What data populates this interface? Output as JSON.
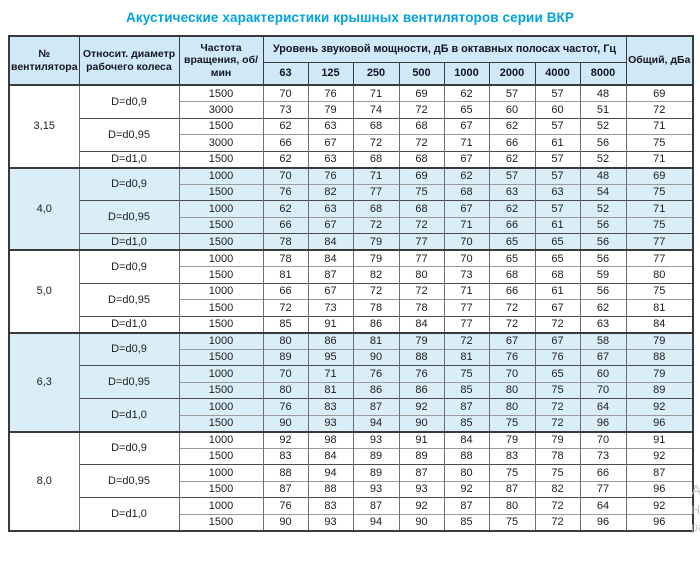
{
  "title": "Акустические характеристики крышных вентиляторов серии ВКР",
  "colors": {
    "title_blue": "#00a3dc",
    "header_bg": "#cfe9f7",
    "section_blue": "#daeef8",
    "border_dark": "#3a3a3a",
    "border_mid": "#6e6e6e",
    "border_light": "#9a9a9a"
  },
  "table": {
    "headers": {
      "fan": "№ вентилятора",
      "diameter": "Относит. диаметр рабочего колеса",
      "speed": "Частота вращения, об/мин",
      "spl_group": "Уровень звуковой мощности, дБ в октавных полосах частот, Гц",
      "freq_bands": [
        "63",
        "125",
        "250",
        "500",
        "1000",
        "2000",
        "4000",
        "8000"
      ],
      "total": "Общий, дБа"
    },
    "sections": [
      {
        "fan": "3,15",
        "groups": [
          {
            "diameter": "D=d0,9",
            "rows": [
              {
                "speed": "1500",
                "levels": [
                  70,
                  76,
                  71,
                  69,
                  62,
                  57,
                  57,
                  48
                ],
                "total": "69"
              },
              {
                "speed": "3000",
                "levels": [
                  73,
                  79,
                  74,
                  72,
                  65,
                  60,
                  60,
                  51
                ],
                "total": "72"
              }
            ]
          },
          {
            "diameter": "D=d0,95",
            "rows": [
              {
                "speed": "1500",
                "levels": [
                  62,
                  63,
                  68,
                  68,
                  67,
                  62,
                  57,
                  52
                ],
                "total": "71"
              },
              {
                "speed": "3000",
                "levels": [
                  66,
                  67,
                  72,
                  72,
                  71,
                  66,
                  61,
                  56
                ],
                "total": "75"
              }
            ]
          },
          {
            "diameter": "D=d1,0",
            "rows": [
              {
                "speed": "1500",
                "levels": [
                  62,
                  63,
                  68,
                  68,
                  67,
                  62,
                  57,
                  52
                ],
                "total": "71"
              }
            ]
          }
        ]
      },
      {
        "fan": "4,0",
        "groups": [
          {
            "diameter": "D=d0,9",
            "rows": [
              {
                "speed": "1000",
                "levels": [
                  70,
                  76,
                  71,
                  69,
                  62,
                  57,
                  57,
                  48
                ],
                "total": "69"
              },
              {
                "speed": "1500",
                "levels": [
                  76,
                  82,
                  77,
                  75,
                  68,
                  63,
                  63,
                  54
                ],
                "total": "75"
              }
            ]
          },
          {
            "diameter": "D=d0,95",
            "rows": [
              {
                "speed": "1000",
                "levels": [
                  62,
                  63,
                  68,
                  68,
                  67,
                  62,
                  57,
                  52
                ],
                "total": "71"
              },
              {
                "speed": "1500",
                "levels": [
                  66,
                  67,
                  72,
                  72,
                  71,
                  66,
                  61,
                  56
                ],
                "total": "75"
              }
            ]
          },
          {
            "diameter": "D=d1,0",
            "rows": [
              {
                "speed": "1500",
                "levels": [
                  78,
                  84,
                  79,
                  77,
                  70,
                  65,
                  65,
                  56
                ],
                "total": "77"
              }
            ]
          }
        ]
      },
      {
        "fan": "5,0",
        "groups": [
          {
            "diameter": "D=d0,9",
            "rows": [
              {
                "speed": "1000",
                "levels": [
                  78,
                  84,
                  79,
                  77,
                  70,
                  65,
                  65,
                  56
                ],
                "total": "77"
              },
              {
                "speed": "1500",
                "levels": [
                  81,
                  87,
                  82,
                  80,
                  73,
                  68,
                  68,
                  59
                ],
                "total": "80"
              }
            ]
          },
          {
            "diameter": "D=d0,95",
            "rows": [
              {
                "speed": "1000",
                "levels": [
                  66,
                  67,
                  72,
                  72,
                  71,
                  66,
                  61,
                  56
                ],
                "total": "75"
              },
              {
                "speed": "1500",
                "levels": [
                  72,
                  73,
                  78,
                  78,
                  77,
                  72,
                  67,
                  62
                ],
                "total": "81"
              }
            ]
          },
          {
            "diameter": "D=d1,0",
            "rows": [
              {
                "speed": "1500",
                "levels": [
                  85,
                  91,
                  86,
                  84,
                  77,
                  72,
                  72,
                  63
                ],
                "total": "84"
              }
            ]
          }
        ]
      },
      {
        "fan": "6,3",
        "groups": [
          {
            "diameter": "D=d0,9",
            "rows": [
              {
                "speed": "1000",
                "levels": [
                  80,
                  86,
                  81,
                  79,
                  72,
                  67,
                  67,
                  58
                ],
                "total": "79"
              },
              {
                "speed": "1500",
                "levels": [
                  89,
                  95,
                  90,
                  88,
                  81,
                  76,
                  76,
                  67
                ],
                "total": "88"
              }
            ]
          },
          {
            "diameter": "D=d0,95",
            "rows": [
              {
                "speed": "1000",
                "levels": [
                  70,
                  71,
                  76,
                  76,
                  75,
                  70,
                  65,
                  60
                ],
                "total": "79"
              },
              {
                "speed": "1500",
                "levels": [
                  80,
                  81,
                  86,
                  86,
                  85,
                  80,
                  75,
                  70
                ],
                "total": "89"
              }
            ]
          },
          {
            "diameter": "D=d1,0",
            "rows": [
              {
                "speed": "1000",
                "levels": [
                  76,
                  83,
                  87,
                  92,
                  87,
                  80,
                  72,
                  64
                ],
                "total": "92"
              },
              {
                "speed": "1500",
                "levels": [
                  90,
                  93,
                  94,
                  90,
                  85,
                  75,
                  72,
                  96
                ],
                "total": "96"
              }
            ]
          }
        ]
      },
      {
        "fan": "8,0",
        "groups": [
          {
            "diameter": "D=d0,9",
            "rows": [
              {
                "speed": "1000",
                "levels": [
                  92,
                  98,
                  93,
                  91,
                  84,
                  79,
                  79,
                  70
                ],
                "total": "91"
              },
              {
                "speed": "1500",
                "levels": [
                  83,
                  84,
                  89,
                  89,
                  88,
                  83,
                  78,
                  73
                ],
                "total": "92"
              }
            ]
          },
          {
            "diameter": "D=d0,95",
            "rows": [
              {
                "speed": "1000",
                "levels": [
                  88,
                  94,
                  89,
                  87,
                  80,
                  75,
                  75,
                  66
                ],
                "total": "87"
              },
              {
                "speed": "1500",
                "levels": [
                  87,
                  88,
                  93,
                  93,
                  92,
                  87,
                  82,
                  77
                ],
                "total": "96"
              }
            ]
          },
          {
            "diameter": "D=d1,0",
            "rows": [
              {
                "speed": "1000",
                "levels": [
                  76,
                  83,
                  87,
                  92,
                  87,
                  80,
                  72,
                  64
                ],
                "total": "92"
              },
              {
                "speed": "1500",
                "levels": [
                  90,
                  93,
                  94,
                  90,
                  85,
                  75,
                  72,
                  96
                ],
                "total": "96"
              }
            ]
          }
        ]
      }
    ]
  },
  "watermark": {
    "line1": "Ак",
    "line2": "Нта",
    "line3": "ра"
  }
}
